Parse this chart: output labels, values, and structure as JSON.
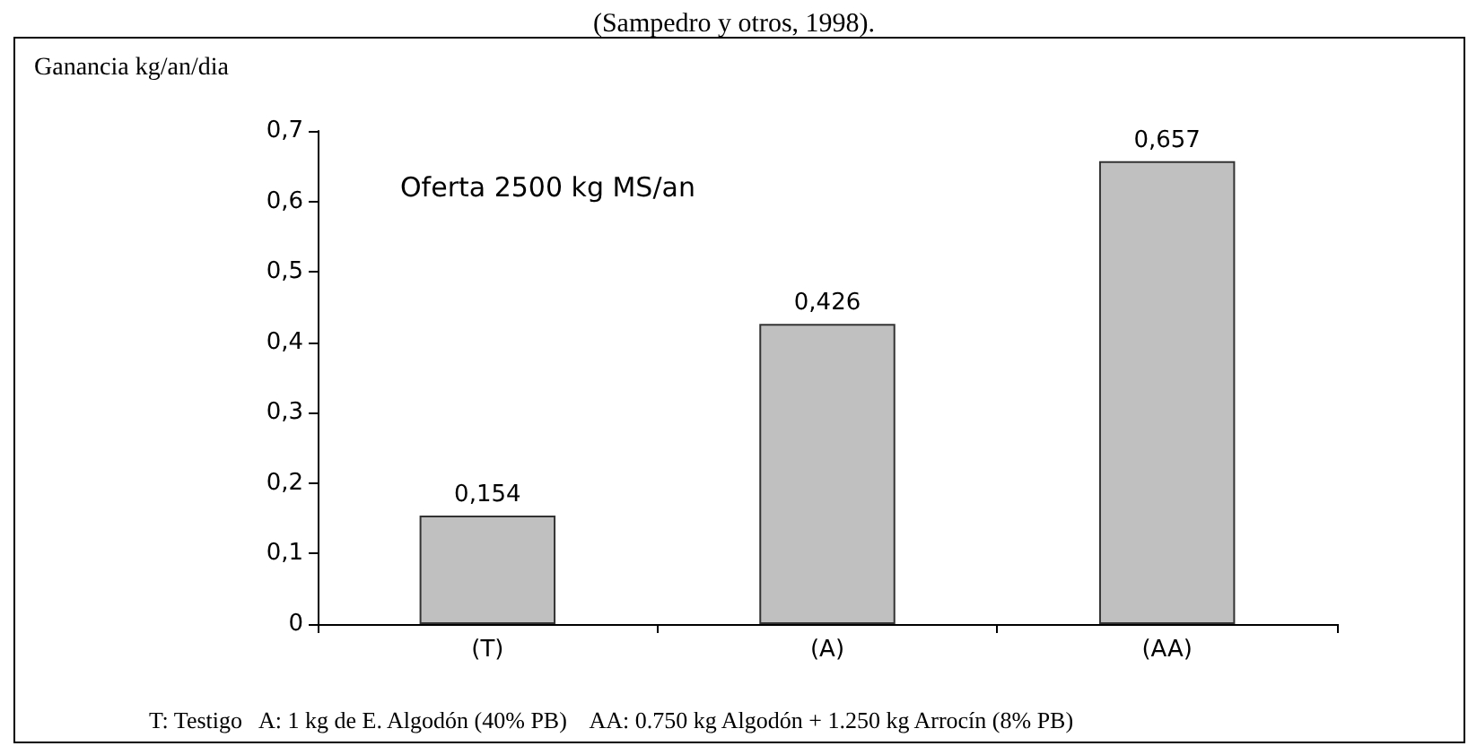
{
  "chart_data": {
    "type": "bar",
    "ylabel": "Ganancia kg/an/dia",
    "categories": [
      "(T)",
      "(A)",
      "(AA)"
    ],
    "values": [
      0.154,
      0.426,
      0.657
    ],
    "color": "#c0c0c0",
    "value_labels": [
      "0,154",
      "0,426",
      "0,657"
    ],
    "ylim": [
      0,
      0.7
    ],
    "yticks": [
      0,
      {
        "value": 0.1,
        "label": "0,1"
      },
      {
        "value": 0.2,
        "label": "0,2"
      },
      {
        "value": 0.3,
        "label": "0,3"
      },
      {
        "value": 0.4,
        "label": "0,4"
      },
      {
        "value": 0.5,
        "label": "0,5"
      },
      {
        "value": 0.6,
        "label": "0,6"
      },
      {
        "value": 0.7,
        "label": "0,7"
      }
    ],
    "grid": false,
    "annotations": [
      "(Sampedro y otros, 1998).",
      "Oferta 2500 kg MS/an",
      "T: Testigo   A: 1 kg de E. Algodón (40% PB)    AA: 0.750 kg Algodón + 1.250 kg Arrocín (8% PB)"
    ]
  }
}
